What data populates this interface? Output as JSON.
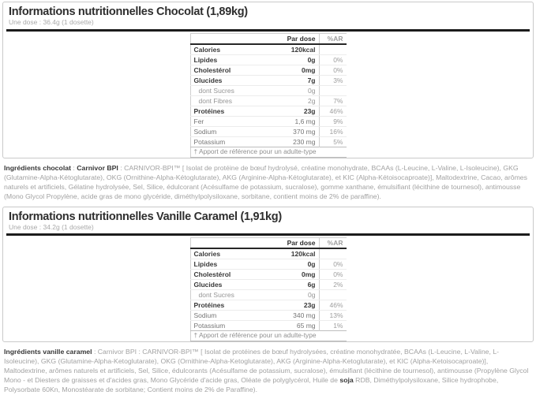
{
  "sections": [
    {
      "title": "Informations nutritionnelles Chocolat (1,89kg)",
      "subtitle": "Une dose : 36.4g (1 dosette)",
      "table": {
        "col_dose": "Par dose",
        "col_ar": "%AR",
        "rows": [
          {
            "label": "Calories",
            "dose": "120kcal",
            "ar": "",
            "style": "main"
          },
          {
            "label": "Lipides",
            "dose": "0g",
            "ar": "0%",
            "style": "main"
          },
          {
            "label": "Cholestérol",
            "dose": "0mg",
            "ar": "0%",
            "style": "main"
          },
          {
            "label": "Glucides",
            "dose": "7g",
            "ar": "3%",
            "style": "main"
          },
          {
            "label": "dont Sucres",
            "dose": "0g",
            "ar": "",
            "style": "sub"
          },
          {
            "label": "dont Fibres",
            "dose": "2g",
            "ar": "7%",
            "style": "sub"
          },
          {
            "label": "Protéines",
            "dose": "23g",
            "ar": "46%",
            "style": "main"
          },
          {
            "label": "Fer",
            "dose": "1,6 mg",
            "ar": "9%",
            "style": "mineral"
          },
          {
            "label": "Sodium",
            "dose": "370 mg",
            "ar": "16%",
            "style": "mineral"
          },
          {
            "label": "Potassium",
            "dose": "230 mg",
            "ar": "5%",
            "style": "mineral"
          }
        ],
        "footnote": "† Apport de référence pour un adulte-type"
      },
      "ingredients_segments": [
        {
          "text": "Ingrédients chocolat",
          "bold": true
        },
        {
          "text": " : ",
          "bold": false
        },
        {
          "text": "Carnivor BPI",
          "bold": true
        },
        {
          "text": " : CARNIVOR-BPI™ [ Isolat de protéine de bœuf hydrolysé, créatine monohydrate, BCAAs (L-Leucine, L-Valine, L-Isoleucine), GKG (Glutamine-Alpha-Kétoglutarate), OKG (Ornithine-Alpha-Kétoglutarate), AKG (Arginine-Alpha-Kétoglutarate), et KIC (Alpha-Kétoisocaproate)], Maltodextrine, Cacao, arômes naturels et artificiels, Gélatine hydrolysée, Sel, Silice, édulcorant (Acésulfame de potassium, sucralose), gomme xanthane, émulsifiant (lécithine de tournesol), antimousse (Mono Glycol Propylène, acide gras de mono glycéride, diméthylpolysiloxane, sorbitane, contient moins de 2% de paraffine).",
          "bold": false
        }
      ]
    },
    {
      "title": "Informations nutritionnelles Vanille Caramel (1,91kg)",
      "subtitle": "Une dose : 34.2g (1 dosette)",
      "table": {
        "col_dose": "Par dose",
        "col_ar": "%AR",
        "rows": [
          {
            "label": "Calories",
            "dose": "120kcal",
            "ar": "",
            "style": "main"
          },
          {
            "label": "Lipides",
            "dose": "0g",
            "ar": "0%",
            "style": "main"
          },
          {
            "label": "Cholestérol",
            "dose": "0mg",
            "ar": "0%",
            "style": "main"
          },
          {
            "label": "Glucides",
            "dose": "6g",
            "ar": "2%",
            "style": "main"
          },
          {
            "label": "dont Sucres",
            "dose": "0g",
            "ar": "",
            "style": "sub"
          },
          {
            "label": "Protéines",
            "dose": "23g",
            "ar": "46%",
            "style": "main"
          },
          {
            "label": "Sodium",
            "dose": "340 mg",
            "ar": "13%",
            "style": "mineral"
          },
          {
            "label": "Potassium",
            "dose": "65 mg",
            "ar": "1%",
            "style": "mineral"
          }
        ],
        "footnote": "† Apport de référence pour un adulte-type"
      },
      "ingredients_segments": [
        {
          "text": "Ingrédients vanille caramel",
          "bold": true
        },
        {
          "text": " : Carnivor BPI : CARNIVOR-BPI™ [ Isolat de protéines de bœuf hydrolysées, créatine monohydratée, BCAAs (L-Leucine, L-Valine, L-Isoleucine), GKG (Glutamine-Alpha-Ketoglutarate), OKG (Ornithine-Alpha-Ketoglutarate), AKG (Arginine-Alpha-Ketoglutarate), et KIC (Alpha-Ketoisocaproate)], Maltodextrine, arômes naturels et artificiels, Sel, Silice, édulcorants (Acésulfame de potassium, sucralose), émulsifiant (lécithine de tournesol), antimousse (Propylène Glycol Mono - et Diesters de graisses et d'acides gras, Mono Glycéride d'acide gras, Oléate de polyglycérol, Huile de ",
          "bold": false
        },
        {
          "text": "soja",
          "bold": true
        },
        {
          "text": " RDB, Diméthylpolysiloxane, Silice hydrophobe, Polysorbate 60Kn, Monostéarate de sorbitane; Contient moins de 2% de Paraffine).",
          "bold": false
        }
      ]
    }
  ]
}
